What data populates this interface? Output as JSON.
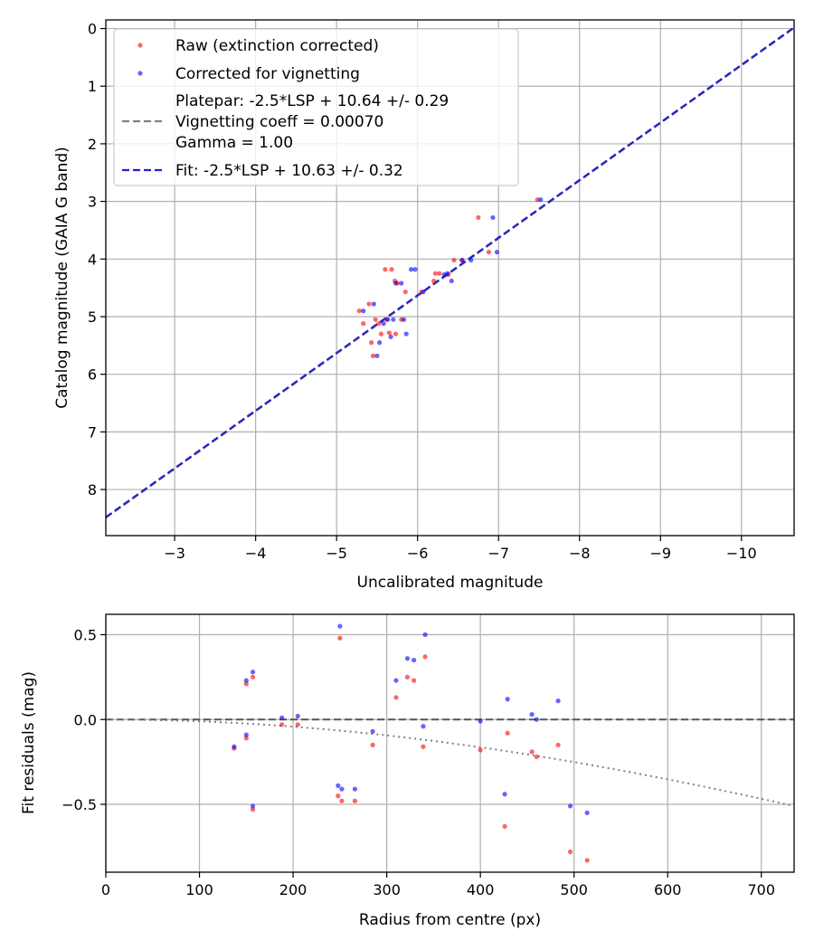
{
  "chart_data": [
    {
      "type": "scatter",
      "name": "catalog-vs-instrumental",
      "xlabel": "Uncalibrated magnitude",
      "ylabel": "Catalog magnitude (GAIA G band)",
      "xlim": [
        -2.15,
        -10.65
      ],
      "ylim": [
        8.8,
        -0.15
      ],
      "xticks": [
        -3,
        -4,
        -5,
        -6,
        -7,
        -8,
        -9,
        -10
      ],
      "xtick_labels": [
        "−3",
        "−4",
        "−5",
        "−6",
        "−7",
        "−8",
        "−9",
        "−10"
      ],
      "yticks": [
        0,
        1,
        2,
        3,
        4,
        5,
        6,
        7,
        8
      ],
      "ytick_labels": [
        "0",
        "1",
        "2",
        "3",
        "4",
        "5",
        "6",
        "7",
        "8"
      ],
      "grid": true,
      "legend_position": "top-left",
      "legend": [
        {
          "label": "Raw (extinction corrected)",
          "kind": "marker",
          "color": "#ff0000"
        },
        {
          "label": "Corrected for vignetting",
          "kind": "marker",
          "color": "#0000ff"
        },
        {
          "label": "Platepar: -2.5*LSP + 10.64 +/- 0.29",
          "label2": "Vignetting coeff = 0.00070",
          "label3": "Gamma = 1.00",
          "kind": "dashed-line",
          "color": "#808080"
        },
        {
          "label": "Fit: -2.5*LSP + 10.63 +/- 0.32",
          "kind": "dashed-line",
          "color": "#2222cc"
        }
      ],
      "series": [
        {
          "name": "Raw (extinction corrected)",
          "color": "#ff0000",
          "points": [
            [
              -5.28,
              4.9
            ],
            [
              -5.33,
              5.12
            ],
            [
              -5.4,
              4.78
            ],
            [
              -5.43,
              5.45
            ],
            [
              -5.45,
              5.68
            ],
            [
              -5.48,
              5.05
            ],
            [
              -5.52,
              5.12
            ],
            [
              -5.55,
              5.3
            ],
            [
              -5.62,
              5.05
            ],
            [
              -5.65,
              5.28
            ],
            [
              -5.6,
              4.18
            ],
            [
              -5.68,
              4.18
            ],
            [
              -5.72,
              4.38
            ],
            [
              -5.73,
              5.3
            ],
            [
              -5.75,
              4.42
            ],
            [
              -5.8,
              5.05
            ],
            [
              -5.85,
              4.57
            ],
            [
              -6.05,
              4.57
            ],
            [
              -6.2,
              4.38
            ],
            [
              -6.22,
              4.25
            ],
            [
              -6.27,
              4.25
            ],
            [
              -6.38,
              4.27
            ],
            [
              -6.45,
              4.02
            ],
            [
              -6.55,
              4.02
            ],
            [
              -6.75,
              3.28
            ],
            [
              -6.88,
              3.88
            ],
            [
              -7.48,
              2.97
            ]
          ]
        },
        {
          "name": "Corrected for vignetting",
          "color": "#0000ff",
          "points": [
            [
              -5.33,
              4.9
            ],
            [
              -5.46,
              4.78
            ],
            [
              -5.5,
              5.68
            ],
            [
              -5.53,
              5.45
            ],
            [
              -5.58,
              5.12
            ],
            [
              -5.63,
              5.05
            ],
            [
              -5.67,
              5.35
            ],
            [
              -5.7,
              5.05
            ],
            [
              -5.73,
              4.42
            ],
            [
              -5.8,
              4.42
            ],
            [
              -5.83,
              5.05
            ],
            [
              -5.86,
              5.3
            ],
            [
              -5.92,
              4.18
            ],
            [
              -5.97,
              4.18
            ],
            [
              -6.07,
              4.57
            ],
            [
              -6.33,
              4.27
            ],
            [
              -6.37,
              4.25
            ],
            [
              -6.42,
              4.38
            ],
            [
              -6.55,
              4.02
            ],
            [
              -6.66,
              4.02
            ],
            [
              -6.93,
              3.28
            ],
            [
              -6.98,
              3.88
            ],
            [
              -7.52,
              2.97
            ]
          ]
        }
      ],
      "lines": [
        {
          "name": "Platepar",
          "slope_intercept": [
            1.0,
            10.64
          ],
          "color": "#808080"
        },
        {
          "name": "Fit",
          "slope_intercept": [
            1.0,
            10.63
          ],
          "color": "#2222cc"
        }
      ]
    },
    {
      "type": "scatter",
      "name": "residuals-vs-radius",
      "xlabel": "Radius from centre (px)",
      "ylabel": "Fit residuals (mag)",
      "xlim": [
        0,
        735
      ],
      "ylim": [
        -0.9,
        0.62
      ],
      "xticks": [
        0,
        100,
        200,
        300,
        400,
        500,
        600,
        700
      ],
      "xtick_labels": [
        "0",
        "100",
        "200",
        "300",
        "400",
        "500",
        "600",
        "700"
      ],
      "yticks": [
        0.5,
        0.0,
        -0.5
      ],
      "ytick_labels": [
        "0.5",
        "0.0",
        "−0.5"
      ],
      "grid": true,
      "series": [
        {
          "name": "Raw (extinction corrected)",
          "color": "#ff0000",
          "points": [
            [
              137,
              -0.17
            ],
            [
              150,
              0.21
            ],
            [
              150,
              -0.11
            ],
            [
              157,
              0.25
            ],
            [
              157,
              -0.53
            ],
            [
              188,
              -0.03
            ],
            [
              205,
              -0.03
            ],
            [
              248,
              -0.45
            ],
            [
              250,
              0.48
            ],
            [
              252,
              -0.48
            ],
            [
              266,
              -0.48
            ],
            [
              285,
              -0.15
            ],
            [
              310,
              0.13
            ],
            [
              322,
              0.25
            ],
            [
              329,
              0.23
            ],
            [
              339,
              -0.16
            ],
            [
              341,
              0.37
            ],
            [
              400,
              -0.18
            ],
            [
              426,
              -0.63
            ],
            [
              429,
              -0.08
            ],
            [
              455,
              -0.19
            ],
            [
              460,
              -0.22
            ],
            [
              483,
              -0.15
            ],
            [
              496,
              -0.78
            ],
            [
              514,
              -0.83
            ]
          ]
        },
        {
          "name": "Corrected for vignetting",
          "color": "#0000ff",
          "points": [
            [
              137,
              -0.16
            ],
            [
              150,
              0.23
            ],
            [
              150,
              -0.09
            ],
            [
              157,
              0.28
            ],
            [
              157,
              -0.51
            ],
            [
              188,
              0.01
            ],
            [
              205,
              0.02
            ],
            [
              248,
              -0.39
            ],
            [
              250,
              0.55
            ],
            [
              252,
              -0.41
            ],
            [
              266,
              -0.41
            ],
            [
              285,
              -0.07
            ],
            [
              310,
              0.23
            ],
            [
              322,
              0.36
            ],
            [
              329,
              0.35
            ],
            [
              339,
              -0.04
            ],
            [
              341,
              0.5
            ],
            [
              400,
              -0.01
            ],
            [
              426,
              -0.44
            ],
            [
              429,
              0.12
            ],
            [
              455,
              0.03
            ],
            [
              460,
              0.0
            ],
            [
              483,
              0.11
            ],
            [
              496,
              -0.51
            ],
            [
              514,
              -0.55
            ]
          ]
        }
      ],
      "reference_zero_line": 0.0,
      "vignetting_curve_coeff": 0.0007
    }
  ]
}
